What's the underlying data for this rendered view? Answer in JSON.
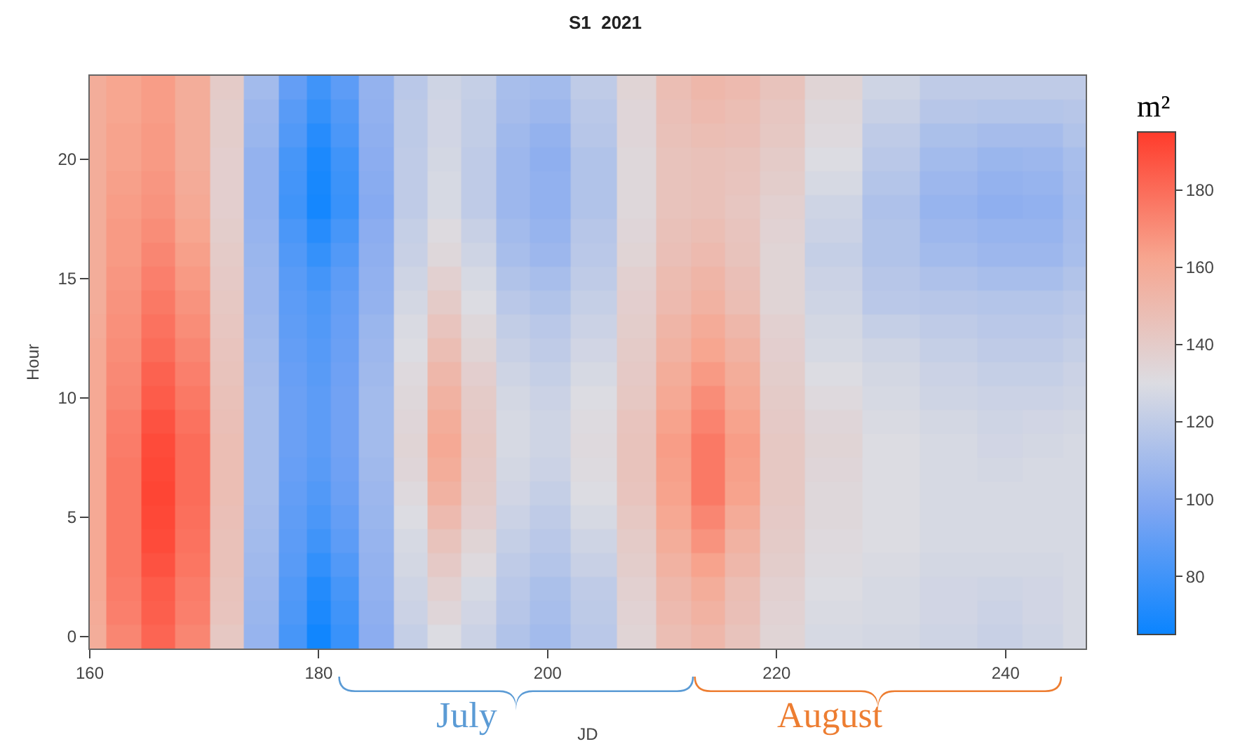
{
  "chart_data": {
    "type": "heatmap",
    "title": "S1  2021",
    "xlabel": "JD",
    "ylabel": "Hour",
    "clabel": "m²",
    "x": [
      160,
      163,
      166,
      169,
      172,
      175,
      178,
      180,
      182,
      185,
      188,
      191,
      194,
      197,
      200,
      204,
      208,
      211,
      214,
      217,
      220,
      225,
      230,
      235,
      240,
      243,
      247
    ],
    "y_categories": [
      null,
      null,
      null,
      "20",
      null,
      null,
      null,
      null,
      "15",
      null,
      null,
      null,
      null,
      "10",
      null,
      null,
      null,
      null,
      "5",
      null,
      null,
      null,
      null,
      "0"
    ],
    "cells": [
      [
        158,
        162,
        165,
        158,
        140,
        110,
        90,
        80,
        88,
        105,
        118,
        125,
        122,
        112,
        110,
        120,
        135,
        148,
        152,
        150,
        145,
        135,
        125,
        120,
        120,
        120,
        120
      ],
      [
        158,
        162,
        165,
        158,
        139,
        108,
        87,
        77,
        85,
        104,
        119,
        126,
        121,
        111,
        108,
        118,
        134,
        147,
        150,
        148,
        143,
        133,
        123,
        117,
        116,
        116,
        117
      ],
      [
        158,
        163,
        166,
        158,
        139,
        107,
        85,
        73,
        83,
        103,
        119,
        126,
        121,
        109,
        105,
        117,
        134,
        146,
        148,
        147,
        142,
        132,
        120,
        113,
        111,
        111,
        115
      ],
      [
        158,
        163,
        166,
        158,
        138,
        105,
        82,
        70,
        80,
        102,
        120,
        127,
        120,
        108,
        103,
        115,
        133,
        145,
        146,
        145,
        140,
        130,
        118,
        110,
        107,
        108,
        112
      ],
      [
        158,
        164,
        167,
        159,
        138,
        105,
        81,
        69,
        79,
        101,
        120,
        128,
        120,
        108,
        104,
        115,
        133,
        145,
        146,
        144,
        139,
        128,
        116,
        108,
        105,
        106,
        111
      ],
      [
        158,
        165,
        168,
        160,
        138,
        105,
        80,
        68,
        78,
        100,
        120,
        128,
        120,
        108,
        104,
        115,
        133,
        145,
        146,
        143,
        137,
        125,
        114,
        106,
        103,
        104,
        110
      ],
      [
        158,
        166,
        170,
        162,
        139,
        106,
        83,
        73,
        82,
        102,
        122,
        131,
        123,
        110,
        106,
        117,
        134,
        146,
        148,
        144,
        136,
        124,
        115,
        108,
        106,
        106,
        111
      ],
      [
        158,
        166,
        172,
        164,
        140,
        107,
        85,
        77,
        85,
        103,
        123,
        133,
        125,
        112,
        108,
        118,
        135,
        147,
        150,
        145,
        135,
        122,
        115,
        110,
        108,
        108,
        112
      ],
      [
        158,
        167,
        174,
        166,
        141,
        108,
        87,
        81,
        88,
        104,
        125,
        137,
        128,
        115,
        112,
        120,
        137,
        149,
        153,
        147,
        135,
        124,
        117,
        114,
        112,
        112,
        115
      ],
      [
        158,
        168,
        176,
        168,
        142,
        108,
        88,
        84,
        90,
        105,
        127,
        140,
        130,
        118,
        115,
        122,
        138,
        150,
        155,
        148,
        135,
        125,
        118,
        117,
        116,
        116,
        118
      ],
      [
        159,
        169,
        178,
        170,
        143,
        109,
        89,
        85,
        91,
        107,
        129,
        144,
        133,
        121,
        118,
        124,
        139,
        153,
        159,
        152,
        137,
        127,
        122,
        120,
        118,
        118,
        120
      ],
      [
        160,
        170,
        180,
        172,
        144,
        110,
        90,
        86,
        92,
        108,
        130,
        148,
        135,
        123,
        120,
        126,
        140,
        155,
        162,
        155,
        138,
        128,
        125,
        122,
        120,
        120,
        122
      ],
      [
        160,
        171,
        183,
        174,
        145,
        111,
        91,
        87,
        93,
        109,
        132,
        152,
        138,
        125,
        122,
        128,
        141,
        158,
        166,
        158,
        139,
        130,
        127,
        124,
        122,
        122,
        124
      ],
      [
        160,
        172,
        185,
        176,
        146,
        112,
        92,
        88,
        94,
        110,
        133,
        155,
        140,
        127,
        124,
        130,
        142,
        160,
        170,
        160,
        140,
        132,
        128,
        125,
        124,
        124,
        125
      ],
      [
        160,
        174,
        188,
        178,
        147,
        112,
        92,
        88,
        94,
        110,
        134,
        158,
        141,
        128,
        125,
        131,
        144,
        163,
        173,
        163,
        141,
        134,
        129,
        127,
        125,
        126,
        127
      ],
      [
        160,
        175,
        190,
        180,
        148,
        112,
        92,
        88,
        94,
        110,
        135,
        160,
        142,
        128,
        125,
        132,
        145,
        165,
        176,
        165,
        142,
        135,
        130,
        128,
        126,
        127,
        128
      ],
      [
        160,
        176,
        191,
        180,
        148,
        112,
        91,
        87,
        93,
        109,
        134,
        158,
        141,
        127,
        124,
        131,
        145,
        164,
        176,
        164,
        142,
        134,
        130,
        128,
        127,
        128,
        128
      ],
      [
        160,
        176,
        192,
        180,
        148,
        112,
        90,
        85,
        92,
        108,
        132,
        155,
        140,
        126,
        122,
        130,
        144,
        163,
        176,
        163,
        142,
        133,
        130,
        128,
        128,
        128,
        128
      ],
      [
        160,
        176,
        191,
        179,
        147,
        111,
        89,
        83,
        90,
        107,
        130,
        150,
        138,
        124,
        120,
        128,
        142,
        161,
        172,
        159,
        141,
        133,
        130,
        128,
        128,
        128,
        128
      ],
      [
        160,
        176,
        190,
        178,
        146,
        110,
        88,
        80,
        88,
        106,
        128,
        145,
        135,
        122,
        118,
        125,
        140,
        158,
        168,
        155,
        140,
        132,
        130,
        128,
        128,
        128,
        128
      ],
      [
        160,
        176,
        188,
        177,
        146,
        109,
        87,
        76,
        85,
        105,
        127,
        141,
        132,
        120,
        116,
        123,
        139,
        155,
        163,
        152,
        139,
        131,
        129,
        127,
        127,
        127,
        128
      ],
      [
        160,
        175,
        185,
        175,
        145,
        108,
        85,
        72,
        82,
        104,
        125,
        137,
        128,
        118,
        113,
        120,
        137,
        152,
        158,
        148,
        137,
        130,
        128,
        126,
        125,
        126,
        128
      ],
      [
        159,
        174,
        184,
        174,
        144,
        107,
        84,
        70,
        80,
        103,
        124,
        134,
        126,
        117,
        112,
        119,
        136,
        150,
        155,
        147,
        136,
        129,
        128,
        126,
        124,
        126,
        128
      ],
      [
        158,
        172,
        182,
        172,
        142,
        106,
        82,
        67,
        78,
        102,
        122,
        130,
        124,
        115,
        110,
        118,
        135,
        148,
        152,
        145,
        135,
        128,
        127,
        125,
        123,
        125,
        128
      ]
    ],
    "colors": [
      "#0a84ff",
      "#7fa6f2",
      "#dcdce2",
      "#f7a58f",
      "#ff3b2b"
    ],
    "xlim": [
      160,
      247
    ],
    "xticks": [
      160,
      180,
      200,
      220,
      240
    ],
    "clim": [
      65,
      195
    ],
    "cticks": [
      80,
      100,
      120,
      140,
      160,
      180
    ],
    "annotations": [
      "July",
      "August"
    ]
  }
}
